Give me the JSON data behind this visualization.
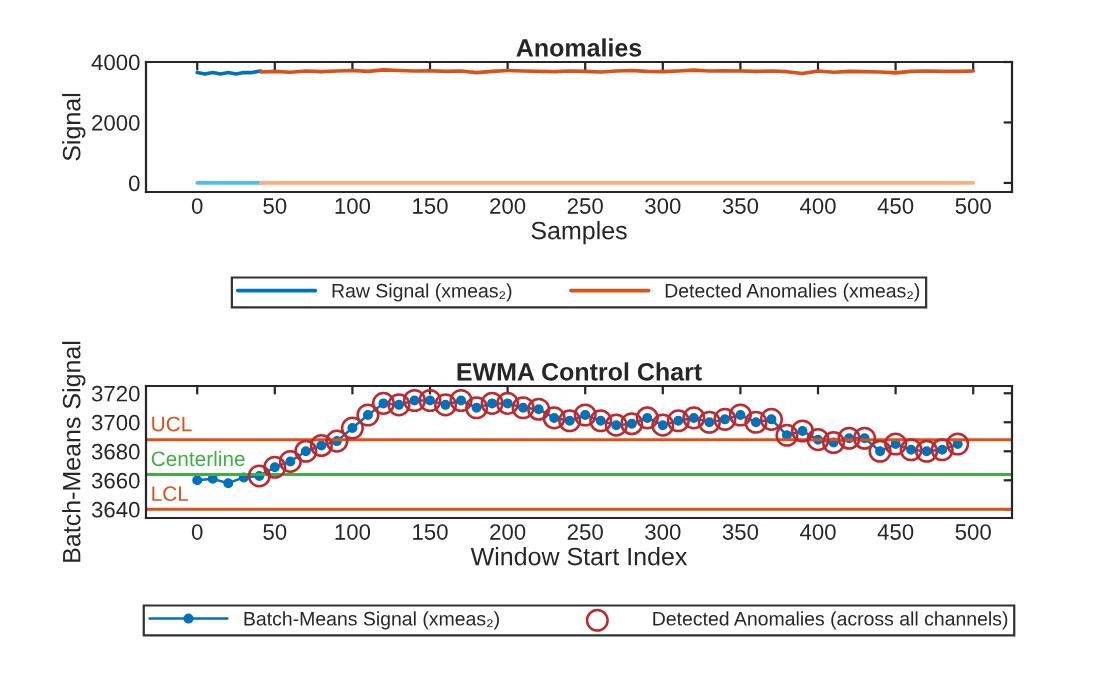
{
  "chart_data": [
    {
      "type": "line",
      "title": "Anomalies",
      "xlabel": "Samples",
      "ylabel": "Signal",
      "xlim": [
        -33,
        525
      ],
      "ylim": [
        -300,
        4000
      ],
      "xticks": [
        0,
        50,
        100,
        150,
        200,
        250,
        300,
        350,
        400,
        450,
        500
      ],
      "yticks": [
        0,
        2000,
        4000
      ],
      "legend": "bottom",
      "grid": false,
      "series": [
        {
          "name": "Raw Signal (xmeas₂)",
          "color": "#0072bd",
          "x": [
            0,
            5,
            10,
            15,
            20,
            25,
            30,
            35,
            41
          ],
          "values": [
            3650,
            3600,
            3650,
            3600,
            3650,
            3600,
            3650,
            3650,
            3700
          ]
        },
        {
          "name": "Detected Anomalies (xmeas₂)",
          "color": "#d95319",
          "x": [
            41,
            50,
            60,
            70,
            80,
            90,
            100,
            110,
            120,
            130,
            140,
            150,
            160,
            170,
            180,
            190,
            200,
            210,
            220,
            230,
            240,
            250,
            260,
            270,
            280,
            290,
            300,
            310,
            320,
            330,
            340,
            350,
            360,
            370,
            380,
            390,
            400,
            410,
            420,
            430,
            440,
            450,
            460,
            470,
            480,
            490,
            500
          ],
          "values": [
            3670,
            3690,
            3660,
            3700,
            3680,
            3700,
            3720,
            3690,
            3740,
            3720,
            3700,
            3710,
            3690,
            3700,
            3650,
            3690,
            3720,
            3700,
            3690,
            3680,
            3700,
            3690,
            3670,
            3700,
            3720,
            3690,
            3680,
            3700,
            3730,
            3700,
            3710,
            3700,
            3690,
            3700,
            3680,
            3620,
            3700,
            3660,
            3690,
            3680,
            3670,
            3640,
            3690,
            3700,
            3690,
            3690,
            3700
          ]
        },
        {
          "color": "#4dbeee",
          "x": [
            0,
            41
          ],
          "values": [
            0,
            0
          ]
        },
        {
          "color": "#ffad7a",
          "x": [
            41,
            500
          ],
          "values": [
            0,
            0
          ]
        }
      ]
    },
    {
      "type": "line",
      "title": "EWMA Control Chart",
      "xlabel": "Window Start Index",
      "ylabel": "Batch-Means Signal",
      "xlim": [
        -33,
        525
      ],
      "ylim": [
        3634,
        3725
      ],
      "xticks": [
        0,
        50,
        100,
        150,
        200,
        250,
        300,
        350,
        400,
        450,
        500
      ],
      "yticks": [
        3640,
        3660,
        3680,
        3700,
        3720
      ],
      "legend": "bottom",
      "grid": false,
      "ref_lines": [
        {
          "axis": "y",
          "value": 3688,
          "label": "UCL",
          "color": "#d95319"
        },
        {
          "axis": "y",
          "value": 3664,
          "label": "Centerline",
          "color": "#3cb043"
        },
        {
          "axis": "y",
          "value": 3640,
          "label": "LCL",
          "color": "#d95319"
        }
      ],
      "series": [
        {
          "name": "Batch-Means Signal (xmeas₂)",
          "color": "#0072bd",
          "marker": "circle",
          "x": [
            0,
            10,
            20,
            30,
            40,
            50,
            60,
            70,
            80,
            90,
            100,
            110,
            120,
            130,
            140,
            150,
            160,
            170,
            180,
            190,
            200,
            210,
            220,
            230,
            240,
            250,
            260,
            270,
            280,
            290,
            300,
            310,
            320,
            330,
            340,
            350,
            360,
            370,
            380,
            390,
            400,
            410,
            420,
            430,
            440,
            450,
            460,
            470,
            480,
            490
          ],
          "values": [
            3660,
            3661,
            3658,
            3662,
            3663,
            3669,
            3673,
            3680,
            3684,
            3687,
            3696,
            3705,
            3713,
            3712,
            3715,
            3715,
            3712,
            3715,
            3710,
            3713,
            3713,
            3710,
            3709,
            3703,
            3701,
            3705,
            3701,
            3698,
            3699,
            3703,
            3698,
            3701,
            3703,
            3700,
            3702,
            3705,
            3700,
            3702,
            3691,
            3694,
            3688,
            3686,
            3689,
            3689,
            3680,
            3685,
            3681,
            3680,
            3681,
            3685
          ]
        },
        {
          "name": "Detected Anomalies (across all channels)",
          "type": "scatter",
          "color": "#c0282e",
          "marker": "circle",
          "x": [
            40,
            50,
            60,
            70,
            80,
            90,
            100,
            110,
            120,
            130,
            140,
            150,
            160,
            170,
            180,
            190,
            200,
            210,
            220,
            230,
            240,
            250,
            260,
            270,
            280,
            290,
            300,
            310,
            320,
            330,
            340,
            350,
            360,
            370,
            380,
            390,
            400,
            410,
            420,
            430,
            440,
            450,
            460,
            470,
            480,
            490
          ],
          "values": [
            3663,
            3669,
            3673,
            3680,
            3684,
            3687,
            3696,
            3705,
            3713,
            3712,
            3715,
            3715,
            3712,
            3715,
            3710,
            3713,
            3713,
            3710,
            3709,
            3703,
            3701,
            3705,
            3701,
            3698,
            3699,
            3703,
            3698,
            3701,
            3703,
            3700,
            3702,
            3705,
            3700,
            3702,
            3691,
            3694,
            3688,
            3686,
            3689,
            3689,
            3680,
            3685,
            3681,
            3680,
            3681,
            3685
          ]
        }
      ]
    }
  ]
}
